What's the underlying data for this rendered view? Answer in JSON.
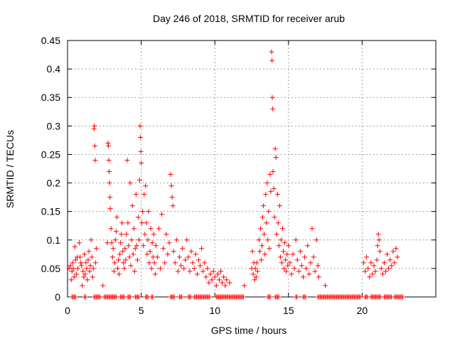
{
  "chart_data": {
    "type": "scatter",
    "title": "Day 246 of 2018, SRMTID for receiver arub",
    "xlabel": "GPS time / hours",
    "ylabel": "SRMTID / TECUs",
    "xlim": [
      0,
      25
    ],
    "ylim": [
      0,
      0.45
    ],
    "x_ticks": [
      0,
      5,
      10,
      15,
      20
    ],
    "x_tick_labels": [
      "0",
      "5",
      "10",
      "15",
      "20"
    ],
    "y_ticks": [
      0,
      0.05,
      0.1,
      0.15,
      0.2,
      0.25,
      0.3,
      0.35,
      0.4,
      0.45
    ],
    "y_tick_labels": [
      "0",
      "0.05",
      "0.1",
      "0.15",
      "0.2",
      "0.25",
      "0.3",
      "0.35",
      "0.4",
      "0.45"
    ],
    "grid": true,
    "marker": "+",
    "color": "#ff0000",
    "series": [
      {
        "name": "SRMTID",
        "points": [
          [
            0.1,
            0.05
          ],
          [
            0.2,
            0.055
          ],
          [
            0.25,
            0.03
          ],
          [
            0.3,
            0.045
          ],
          [
            0.35,
            0.06
          ],
          [
            0.4,
            0.05
          ],
          [
            0.45,
            0.035
          ],
          [
            0.5,
            0.088
          ],
          [
            0.55,
            0.065
          ],
          [
            0.6,
            0.04
          ],
          [
            0.65,
            0.07
          ],
          [
            0.7,
            0.05
          ],
          [
            0.8,
            0.095
          ],
          [
            0.85,
            0.07
          ],
          [
            0.9,
            0.06
          ],
          [
            0.95,
            0.055
          ],
          [
            1.0,
            0.02
          ],
          [
            1.05,
            0.045
          ],
          [
            1.1,
            0.035
          ],
          [
            1.15,
            0.075
          ],
          [
            1.2,
            0.04
          ],
          [
            1.25,
            0.06
          ],
          [
            1.3,
            0.05
          ],
          [
            1.35,
            0.03
          ],
          [
            1.4,
            0.065
          ],
          [
            1.45,
            0.08
          ],
          [
            1.5,
            0.045
          ],
          [
            1.55,
            0.055
          ],
          [
            1.6,
            0.1
          ],
          [
            1.65,
            0.07
          ],
          [
            1.7,
            0.035
          ],
          [
            1.75,
            0.05
          ],
          [
            1.8,
            0.295
          ],
          [
            1.82,
            0.3
          ],
          [
            1.85,
            0.265
          ],
          [
            1.88,
            0.24
          ],
          [
            1.9,
            0.06
          ],
          [
            1.95,
            0.085
          ],
          [
            2.4,
            0.02
          ],
          [
            2.7,
            0.095
          ],
          [
            2.75,
            0.27
          ],
          [
            2.78,
            0.265
          ],
          [
            2.8,
            0.24
          ],
          [
            2.82,
            0.22
          ],
          [
            2.85,
            0.2
          ],
          [
            2.88,
            0.175
          ],
          [
            2.9,
            0.155
          ],
          [
            2.95,
            0.12
          ],
          [
            3.0,
            0.095
          ],
          [
            3.05,
            0.07
          ],
          [
            3.1,
            0.085
          ],
          [
            3.15,
            0.045
          ],
          [
            3.2,
            0.06
          ],
          [
            3.25,
            0.1
          ],
          [
            3.3,
            0.115
          ],
          [
            3.35,
            0.14
          ],
          [
            3.4,
            0.05
          ],
          [
            3.45,
            0.065
          ],
          [
            3.5,
            0.04
          ],
          [
            3.55,
            0.075
          ],
          [
            3.6,
            0.095
          ],
          [
            3.65,
            0.11
          ],
          [
            3.7,
            0.13
          ],
          [
            3.75,
            0.08
          ],
          [
            3.8,
            0.06
          ],
          [
            3.85,
            0.05
          ],
          [
            3.9,
            0.085
          ],
          [
            3.95,
            0.065
          ],
          [
            4.0,
            0.11
          ],
          [
            4.05,
            0.24
          ],
          [
            4.1,
            0.13
          ],
          [
            4.15,
            0.09
          ],
          [
            4.2,
            0.07
          ],
          [
            4.25,
            0.2
          ],
          [
            4.3,
            0.055
          ],
          [
            4.35,
            0.1
          ],
          [
            4.4,
            0.16
          ],
          [
            4.45,
            0.075
          ],
          [
            4.5,
            0.12
          ],
          [
            4.55,
            0.045
          ],
          [
            4.6,
            0.085
          ],
          [
            4.65,
            0.18
          ],
          [
            4.7,
            0.09
          ],
          [
            4.75,
            0.065
          ],
          [
            4.8,
            0.14
          ],
          [
            4.85,
            0.1
          ],
          [
            4.9,
            0.205
          ],
          [
            4.92,
            0.3
          ],
          [
            4.95,
            0.28
          ],
          [
            4.98,
            0.255
          ],
          [
            5.0,
            0.235
          ],
          [
            5.05,
            0.13
          ],
          [
            5.1,
            0.15
          ],
          [
            5.15,
            0.09
          ],
          [
            5.2,
            0.18
          ],
          [
            5.25,
            0.11
          ],
          [
            5.3,
            0.195
          ],
          [
            5.35,
            0.13
          ],
          [
            5.4,
            0.075
          ],
          [
            5.45,
            0.1
          ],
          [
            5.5,
            0.15
          ],
          [
            5.55,
            0.06
          ],
          [
            5.6,
            0.08
          ],
          [
            5.65,
            0.12
          ],
          [
            5.7,
            0.05
          ],
          [
            5.75,
            0.095
          ],
          [
            5.8,
            0.07
          ],
          [
            5.85,
            0.11
          ],
          [
            5.9,
            0.06
          ],
          [
            5.95,
            0.04
          ],
          [
            6.0,
            0.09
          ],
          [
            6.1,
            0.07
          ],
          [
            6.2,
            0.12
          ],
          [
            6.3,
            0.05
          ],
          [
            6.4,
            0.145
          ],
          [
            6.5,
            0.085
          ],
          [
            6.6,
            0.06
          ],
          [
            6.7,
            0.11
          ],
          [
            6.8,
            0.075
          ],
          [
            6.9,
            0.095
          ],
          [
            7.0,
            0.215
          ],
          [
            7.05,
            0.195
          ],
          [
            7.1,
            0.175
          ],
          [
            7.15,
            0.16
          ],
          [
            7.2,
            0.08
          ],
          [
            7.3,
            0.06
          ],
          [
            7.4,
            0.1
          ],
          [
            7.5,
            0.045
          ],
          [
            7.6,
            0.07
          ],
          [
            7.7,
            0.055
          ],
          [
            7.8,
            0.085
          ],
          [
            7.9,
            0.05
          ],
          [
            8.0,
            0.065
          ],
          [
            8.1,
            0.1
          ],
          [
            8.2,
            0.07
          ],
          [
            8.3,
            0.045
          ],
          [
            8.4,
            0.08
          ],
          [
            8.5,
            0.06
          ],
          [
            8.6,
            0.05
          ],
          [
            8.7,
            0.075
          ],
          [
            8.8,
            0.04
          ],
          [
            8.9,
            0.065
          ],
          [
            9.0,
            0.055
          ],
          [
            9.1,
            0.085
          ],
          [
            9.2,
            0.045
          ],
          [
            9.3,
            0.06
          ],
          [
            9.4,
            0.035
          ],
          [
            9.5,
            0.05
          ],
          [
            9.6,
            0.025
          ],
          [
            9.7,
            0.04
          ],
          [
            9.8,
            0.03
          ],
          [
            9.9,
            0.045
          ],
          [
            10.0,
            0.035
          ],
          [
            10.1,
            0.02
          ],
          [
            10.2,
            0.04
          ],
          [
            10.3,
            0.03
          ],
          [
            10.4,
            0.045
          ],
          [
            10.5,
            0.025
          ],
          [
            10.6,
            0.035
          ],
          [
            10.7,
            0.02
          ],
          [
            10.8,
            0.03
          ],
          [
            11.0,
            0.025
          ],
          [
            12.0,
            0.02
          ],
          [
            12.5,
            0.05
          ],
          [
            12.55,
            0.08
          ],
          [
            12.6,
            0.04
          ],
          [
            12.65,
            0.06
          ],
          [
            12.7,
            0.03
          ],
          [
            12.75,
            0.05
          ],
          [
            12.8,
            0.035
          ],
          [
            12.85,
            0.06
          ],
          [
            12.9,
            0.045
          ],
          [
            13.0,
            0.1
          ],
          [
            13.05,
            0.08
          ],
          [
            13.1,
            0.12
          ],
          [
            13.15,
            0.065
          ],
          [
            13.2,
            0.09
          ],
          [
            13.25,
            0.14
          ],
          [
            13.3,
            0.16
          ],
          [
            13.35,
            0.11
          ],
          [
            13.4,
            0.075
          ],
          [
            13.45,
            0.18
          ],
          [
            13.5,
            0.13
          ],
          [
            13.55,
            0.2
          ],
          [
            13.6,
            0.1
          ],
          [
            13.65,
            0.15
          ],
          [
            13.7,
            0.085
          ],
          [
            13.75,
            0.215
          ],
          [
            13.8,
            0.185
          ],
          [
            13.85,
            0.43
          ],
          [
            13.88,
            0.415
          ],
          [
            13.9,
            0.35
          ],
          [
            13.93,
            0.33
          ],
          [
            13.95,
            0.22
          ],
          [
            14.0,
            0.19
          ],
          [
            14.05,
            0.14
          ],
          [
            14.1,
            0.26
          ],
          [
            14.15,
            0.245
          ],
          [
            14.2,
            0.11
          ],
          [
            14.25,
            0.18
          ],
          [
            14.3,
            0.13
          ],
          [
            14.35,
            0.09
          ],
          [
            14.4,
            0.16
          ],
          [
            14.45,
            0.07
          ],
          [
            14.5,
            0.1
          ],
          [
            14.55,
            0.06
          ],
          [
            14.6,
            0.12
          ],
          [
            14.65,
            0.08
          ],
          [
            14.7,
            0.05
          ],
          [
            14.75,
            0.095
          ],
          [
            14.8,
            0.065
          ],
          [
            14.85,
            0.045
          ],
          [
            14.9,
            0.075
          ],
          [
            14.95,
            0.055
          ],
          [
            15.0,
            0.09
          ],
          [
            15.1,
            0.06
          ],
          [
            15.2,
            0.04
          ],
          [
            15.3,
            0.075
          ],
          [
            15.4,
            0.05
          ],
          [
            15.5,
            0.1
          ],
          [
            15.6,
            0.065
          ],
          [
            15.7,
            0.045
          ],
          [
            15.8,
            0.08
          ],
          [
            15.9,
            0.055
          ],
          [
            16.0,
            0.035
          ],
          [
            16.1,
            0.07
          ],
          [
            16.2,
            0.05
          ],
          [
            16.3,
            0.09
          ],
          [
            16.4,
            0.04
          ],
          [
            16.5,
            0.06
          ],
          [
            16.6,
            0.12
          ],
          [
            16.7,
            0.07
          ],
          [
            16.8,
            0.045
          ],
          [
            16.9,
            0.1
          ],
          [
            17.0,
            0.055
          ],
          [
            17.05,
            0.035
          ],
          [
            17.5,
            0.02
          ],
          [
            20.1,
            0.06
          ],
          [
            20.2,
            0.045
          ],
          [
            20.3,
            0.07
          ],
          [
            20.4,
            0.05
          ],
          [
            20.5,
            0.035
          ],
          [
            20.6,
            0.06
          ],
          [
            20.7,
            0.04
          ],
          [
            20.8,
            0.055
          ],
          [
            20.9,
            0.045
          ],
          [
            21.0,
            0.065
          ],
          [
            21.05,
            0.09
          ],
          [
            21.1,
            0.11
          ],
          [
            21.15,
            0.1
          ],
          [
            21.2,
            0.08
          ],
          [
            21.3,
            0.05
          ],
          [
            21.4,
            0.04
          ],
          [
            21.5,
            0.06
          ],
          [
            21.6,
            0.045
          ],
          [
            21.7,
            0.075
          ],
          [
            21.8,
            0.05
          ],
          [
            21.9,
            0.065
          ],
          [
            22.0,
            0.055
          ],
          [
            22.1,
            0.08
          ],
          [
            22.2,
            0.06
          ],
          [
            22.3,
            0.085
          ],
          [
            22.4,
            0.07
          ]
        ]
      }
    ],
    "zero_band": [
      [
        0.3,
        0.6
      ],
      [
        1.15,
        1.3
      ],
      [
        1.8,
        2.2
      ],
      [
        2.5,
        3.3
      ],
      [
        3.6,
        3.9
      ],
      [
        4.1,
        4.3
      ],
      [
        4.6,
        4.9
      ],
      [
        5.3,
        5.5
      ],
      [
        5.7,
        5.8
      ],
      [
        7.0,
        7.3
      ],
      [
        7.6,
        7.8
      ],
      [
        8.2,
        8.4
      ],
      [
        8.6,
        9.7
      ],
      [
        10.1,
        12.0
      ],
      [
        13.6,
        13.8
      ],
      [
        14.1,
        14.4
      ],
      [
        15.5,
        15.6
      ],
      [
        16.0,
        16.2
      ],
      [
        17.0,
        19.9
      ],
      [
        20.2,
        20.4
      ],
      [
        20.6,
        21.3
      ],
      [
        21.5,
        22.0
      ],
      [
        22.2,
        22.8
      ]
    ]
  }
}
